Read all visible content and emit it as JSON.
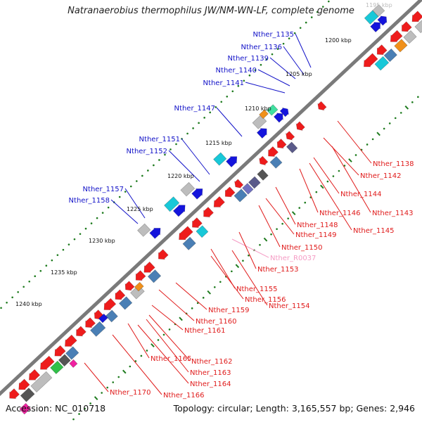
{
  "title": "Natranaerobius thermophilus JW/NM-WN-LF, complete genome",
  "footer": {
    "accession": "Accession: NC_010718",
    "summary": "Topology: circular; Length: 3,165,557 bp; Genes: 2,946"
  },
  "colors": {
    "backbone": "#7a7a7a",
    "dots": "#1e7b1e",
    "forward_label": "#1212c8",
    "reverse_label": "#e01b1b",
    "rna_label": "#f59bc4",
    "ticks": "#111111"
  },
  "kbp_ticks": [
    "1195 kbp",
    "1200 kbp",
    "1205 kbp",
    "1210 kbp",
    "1215 kbp",
    "1220 kbp",
    "1225 kbp",
    "1230 kbp",
    "1235 kbp",
    "1240 kbp"
  ],
  "forward_labels": [
    "Nther_1135",
    "Nther_1136",
    "Nther_1139",
    "Nther_1140",
    "Nther_1141",
    "Nther_1147",
    "Nther_1151",
    "Nther_1152",
    "Nther_1157",
    "Nther_1158"
  ],
  "reverse_labels": [
    "Nther_1138",
    "Nther_1142",
    "Nther_1144",
    "Nther_1143",
    "Nther_1146",
    "Nther_1145",
    "Nther_1148",
    "Nther_1149",
    "Nther_1150",
    "Nther_R0037",
    "Nther_1153",
    "Nther_1155",
    "Nther_1156",
    "Nther_1154",
    "Nther_1159",
    "Nther_1160",
    "Nther_1161",
    "Nther_1162",
    "Nther_1165",
    "Nther_1163",
    "Nther_1164",
    "Nther_1170",
    "Nther_1166"
  ],
  "feature_colors": {
    "cds_red": "#ee1c1c",
    "cds_blue": "#1414dc",
    "cog_grey": "#bdbdbd",
    "cog_dark": "#555555",
    "cog_steel": "#4a7fb5",
    "cog_cyan": "#18c8d8",
    "cog_orange": "#f0901a",
    "cog_green": "#30c048",
    "cog_mint": "#40e0a0",
    "cog_slate": "#5a5a8a",
    "cog_magenta": "#f020a0",
    "cog_purple": "#7070c0"
  }
}
